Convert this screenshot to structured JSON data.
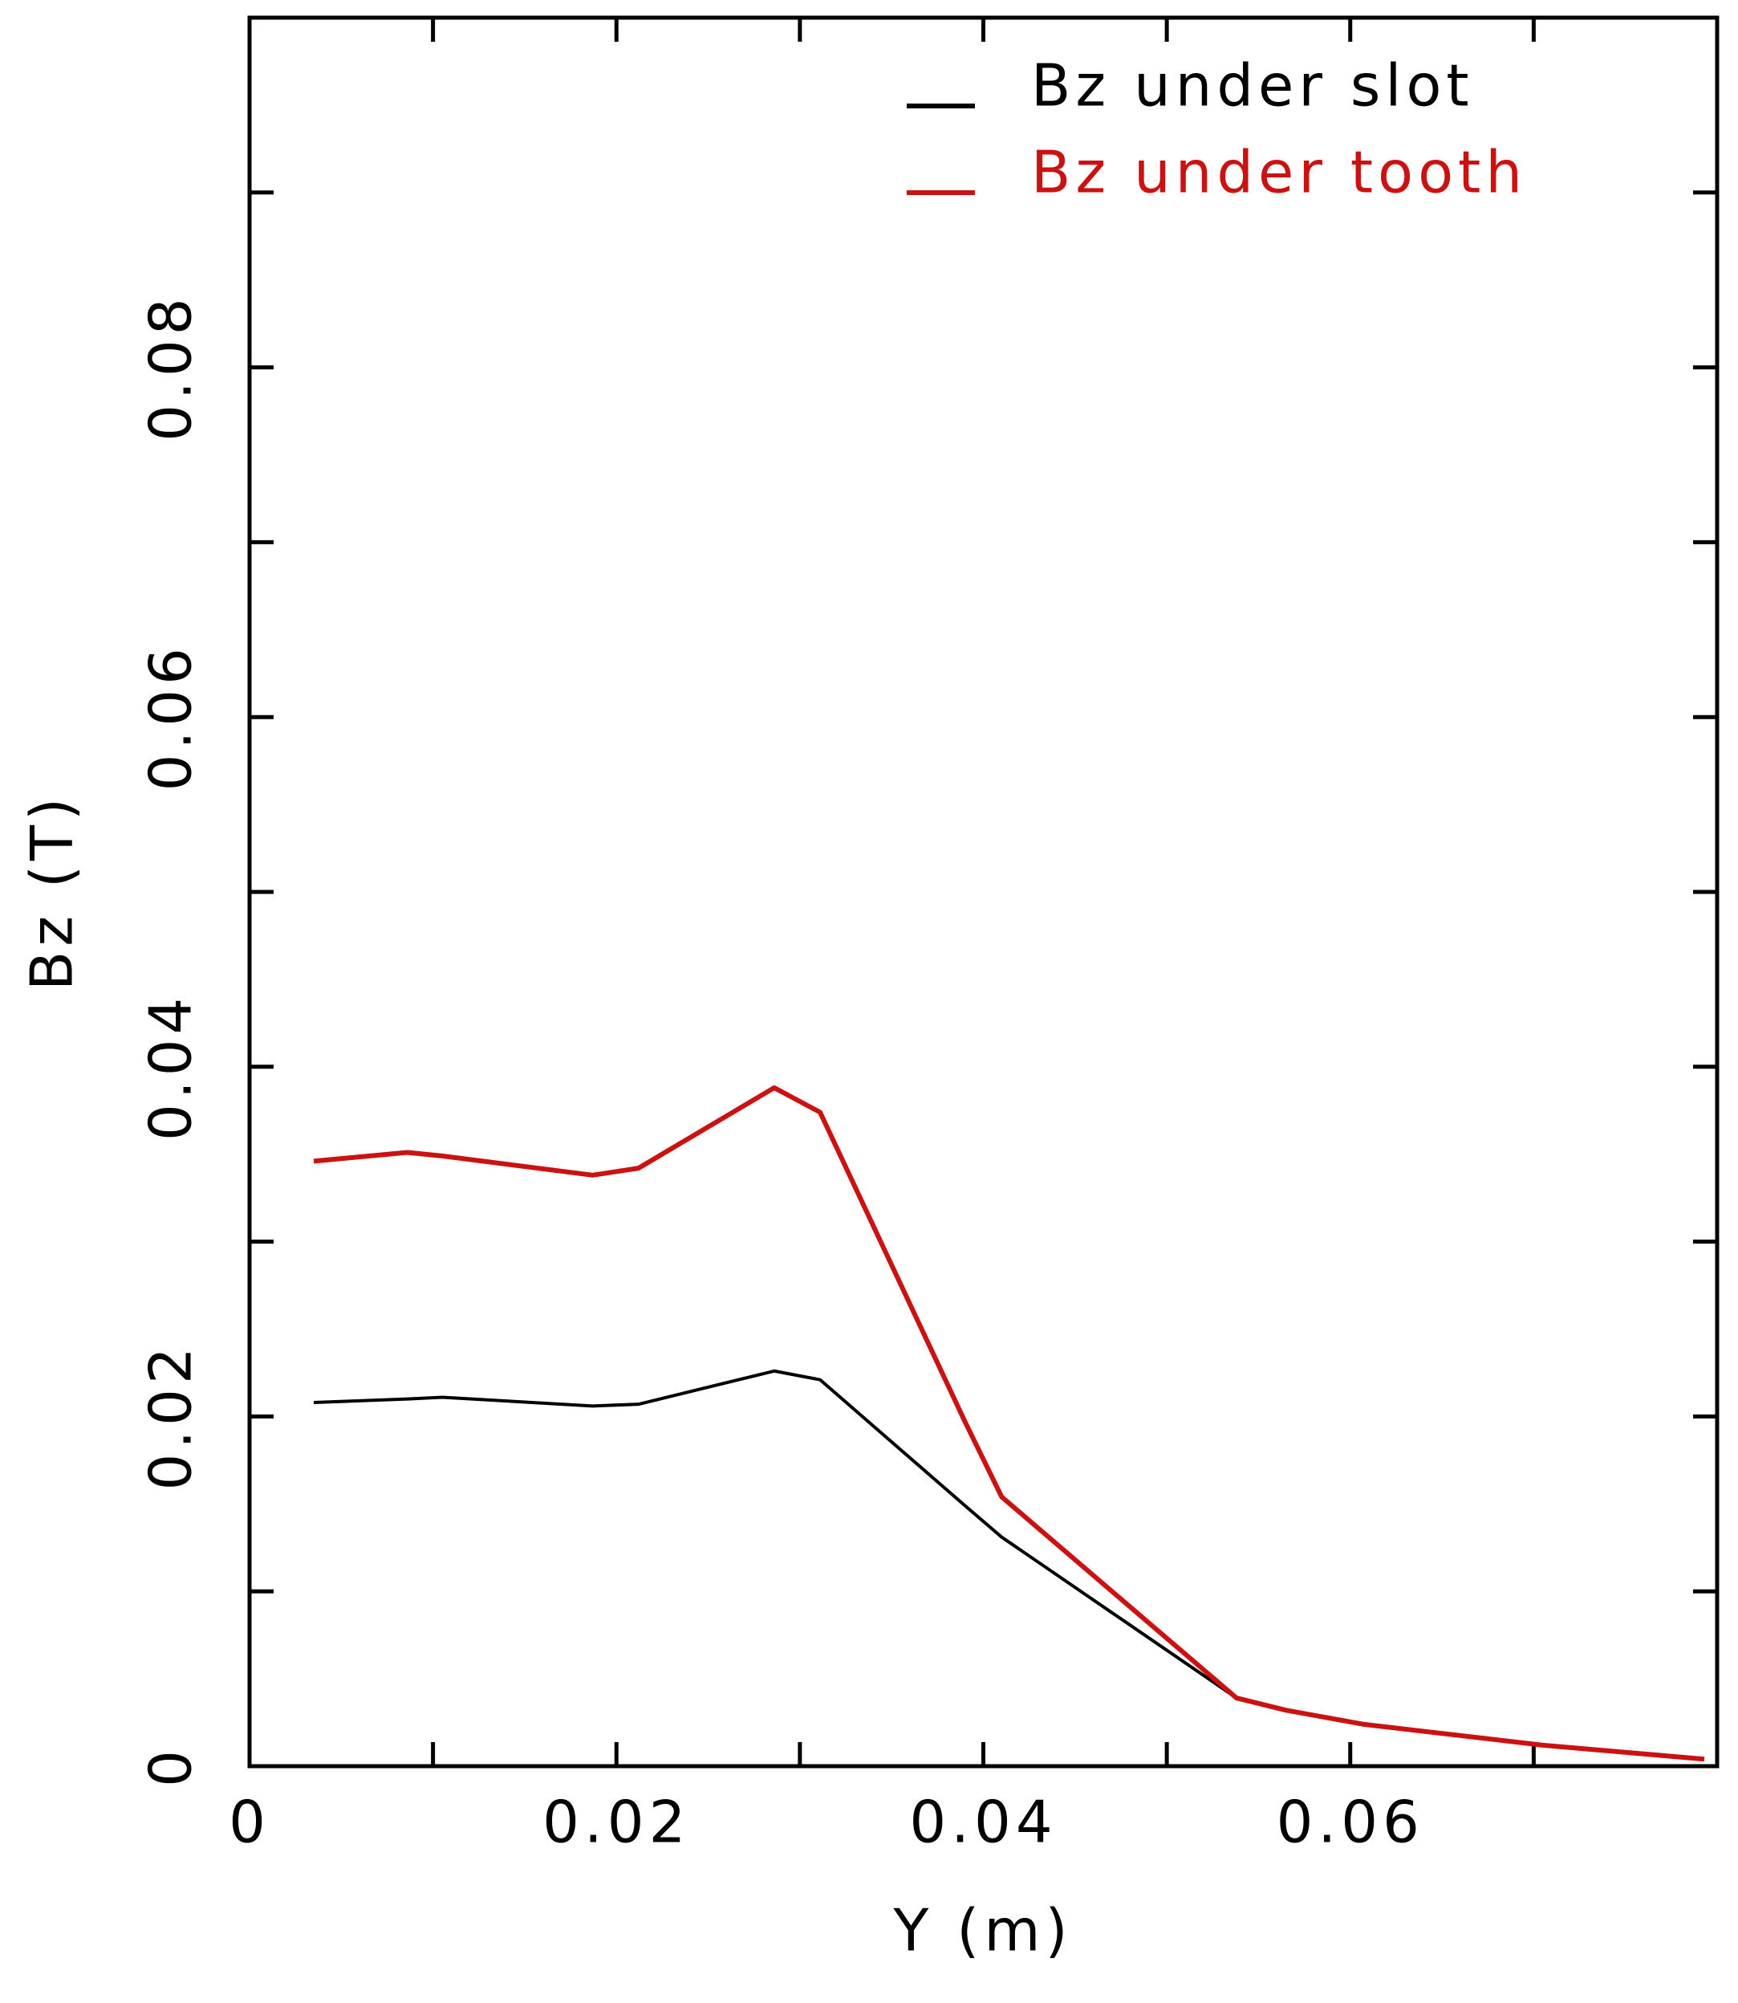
{
  "chart_data": {
    "type": "line",
    "x_label": "Y (m)",
    "y_label": "Bz (T)",
    "x": [
      0.0035,
      0.0086,
      0.0105,
      0.0187,
      0.0212,
      0.0286,
      0.0311,
      0.039,
      0.041,
      0.0538,
      0.0565,
      0.0607,
      0.0705,
      0.0793
    ],
    "series": [
      {
        "name": "Bz under slot",
        "color": "#000000",
        "values": [
          0.0208,
          0.021,
          0.0211,
          0.0206,
          0.0207,
          0.0226,
          0.0221,
          0.0149,
          0.0131,
          0.0039,
          0.0032,
          0.0024,
          0.0012,
          0.0004
        ]
      },
      {
        "name": "Bz under tooth",
        "color": "#cc1111",
        "values": [
          0.0346,
          0.0351,
          0.0349,
          0.0338,
          0.0342,
          0.0388,
          0.0374,
          0.0197,
          0.0154,
          0.0039,
          0.0032,
          0.0024,
          0.0012,
          0.0004
        ]
      }
    ],
    "xlim": [
      0,
      0.08
    ],
    "ylim": [
      0,
      0.1
    ],
    "xticks": [
      0,
      0.02,
      0.04,
      0.06
    ],
    "yticks": [
      0,
      0.02,
      0.04,
      0.06,
      0.08
    ],
    "xminorticks": [
      0.01,
      0.03,
      0.05,
      0.07
    ],
    "yminorticks": [
      0.01,
      0.03,
      0.05,
      0.07,
      0.09,
      0.1
    ],
    "legend": "upper right",
    "grid": false
  }
}
